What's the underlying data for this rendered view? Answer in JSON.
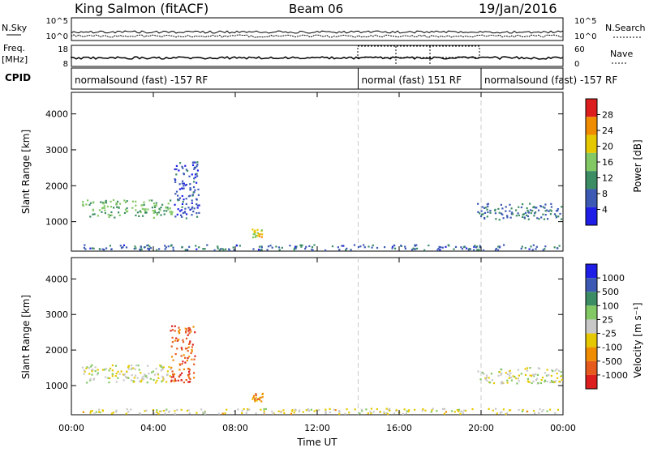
{
  "header": {
    "station": "King Salmon (fitACF)",
    "beam": "Beam 06",
    "date": "19/Jan/2016"
  },
  "noise_panel": {
    "left_label": "N.Sky",
    "right_label": "N.Search",
    "left_ticks": [
      "10^5",
      "10^0"
    ],
    "right_ticks": [
      "10^5",
      "10^0"
    ]
  },
  "freq_panel": {
    "left_label_1": "Freq.",
    "left_label_2": "[MHz]",
    "right_label": "Nave",
    "left_ticks": [
      "18",
      "8"
    ],
    "right_ticks": [
      "60",
      "0"
    ]
  },
  "cpid_panel": {
    "label": "CPID",
    "segments": [
      {
        "text": "normalsound (fast) -157 RF",
        "start_hour": 0.0
      },
      {
        "text": "normal (fast) 151 RF",
        "start_hour": 14.0
      },
      {
        "text": "normalsound (fast) -157 RF",
        "start_hour": 20.0
      }
    ]
  },
  "power_panel": {
    "ylabel": "Slant Range [km]",
    "yticks": [
      "4000",
      "3000",
      "2000",
      "1000"
    ],
    "colorbar_label": "Power [dB]",
    "colorbar_ticks": [
      "28",
      "24",
      "20",
      "16",
      "12",
      "8",
      "4"
    ]
  },
  "velocity_panel": {
    "ylabel": "Slant Range [km]",
    "yticks": [
      "4000",
      "3000",
      "2000",
      "1000"
    ],
    "colorbar_label": "Velocity [m s⁻¹]",
    "colorbar_ticks": [
      "1000",
      "500",
      "100",
      "25",
      "-25",
      "-100",
      "-500",
      "-1000"
    ]
  },
  "xaxis": {
    "label": "Time UT",
    "ticks": [
      "00:00",
      "04:00",
      "08:00",
      "12:00",
      "16:00",
      "20:00",
      "00:00"
    ]
  },
  "colors": {
    "power_scale": [
      "#1e1ee6",
      "#3c5ab4",
      "#3c8c64",
      "#82c864",
      "#e6c800",
      "#f08c00",
      "#dc1e1e"
    ],
    "velocity_scale": [
      "#1e1ee6",
      "#3c5ab4",
      "#3c8c64",
      "#82c864",
      "#c8c8c8",
      "#e6c800",
      "#f08c00",
      "#e65a1e",
      "#dc1e1e"
    ],
    "mode_change": "#c8c8c8"
  },
  "chart_data": {
    "type": "heatmap",
    "title": "King Salmon (fitACF)",
    "xlabel": "Time UT",
    "ylabel": "Slant Range [km]",
    "x_range_hours": [
      0,
      24
    ],
    "y_range_km": [
      180,
      4600
    ],
    "mode_change_hours": [
      14.0,
      20.0
    ],
    "panels": [
      {
        "name": "Power",
        "unit": "dB",
        "color_range": [
          0,
          32
        ],
        "regions": [
          {
            "t_start": 0.5,
            "t_end": 4.9,
            "r_center": 1380,
            "r_width": 500,
            "value": 14
          },
          {
            "t_start": 5.0,
            "t_end": 6.2,
            "r_center": 1900,
            "r_width": 1600,
            "value": 6
          },
          {
            "t_start": 8.8,
            "t_end": 9.3,
            "r_center": 680,
            "r_width": 250,
            "value": 20
          },
          {
            "t_start": 19.8,
            "t_end": 24.0,
            "r_center": 1300,
            "r_width": 450,
            "value": 9
          },
          {
            "t_start": 0.5,
            "t_end": 23.8,
            "r_center": 300,
            "r_width": 150,
            "value": 8
          }
        ]
      },
      {
        "name": "Velocity",
        "unit": "m s-1",
        "color_range": [
          -1000,
          1000
        ],
        "regions": [
          {
            "t_start": 0.5,
            "t_end": 4.9,
            "r_center": 1350,
            "r_width": 500,
            "value": 0
          },
          {
            "t_start": 4.8,
            "t_end": 6.0,
            "r_center": 1900,
            "r_width": 1600,
            "value": -700
          },
          {
            "t_start": 8.8,
            "t_end": 9.3,
            "r_center": 700,
            "r_width": 250,
            "value": -500
          },
          {
            "t_start": 19.8,
            "t_end": 24.0,
            "r_center": 1300,
            "r_width": 450,
            "value": 0
          },
          {
            "t_start": 0.5,
            "t_end": 23.8,
            "r_center": 300,
            "r_width": 150,
            "value": -100
          }
        ]
      }
    ]
  }
}
